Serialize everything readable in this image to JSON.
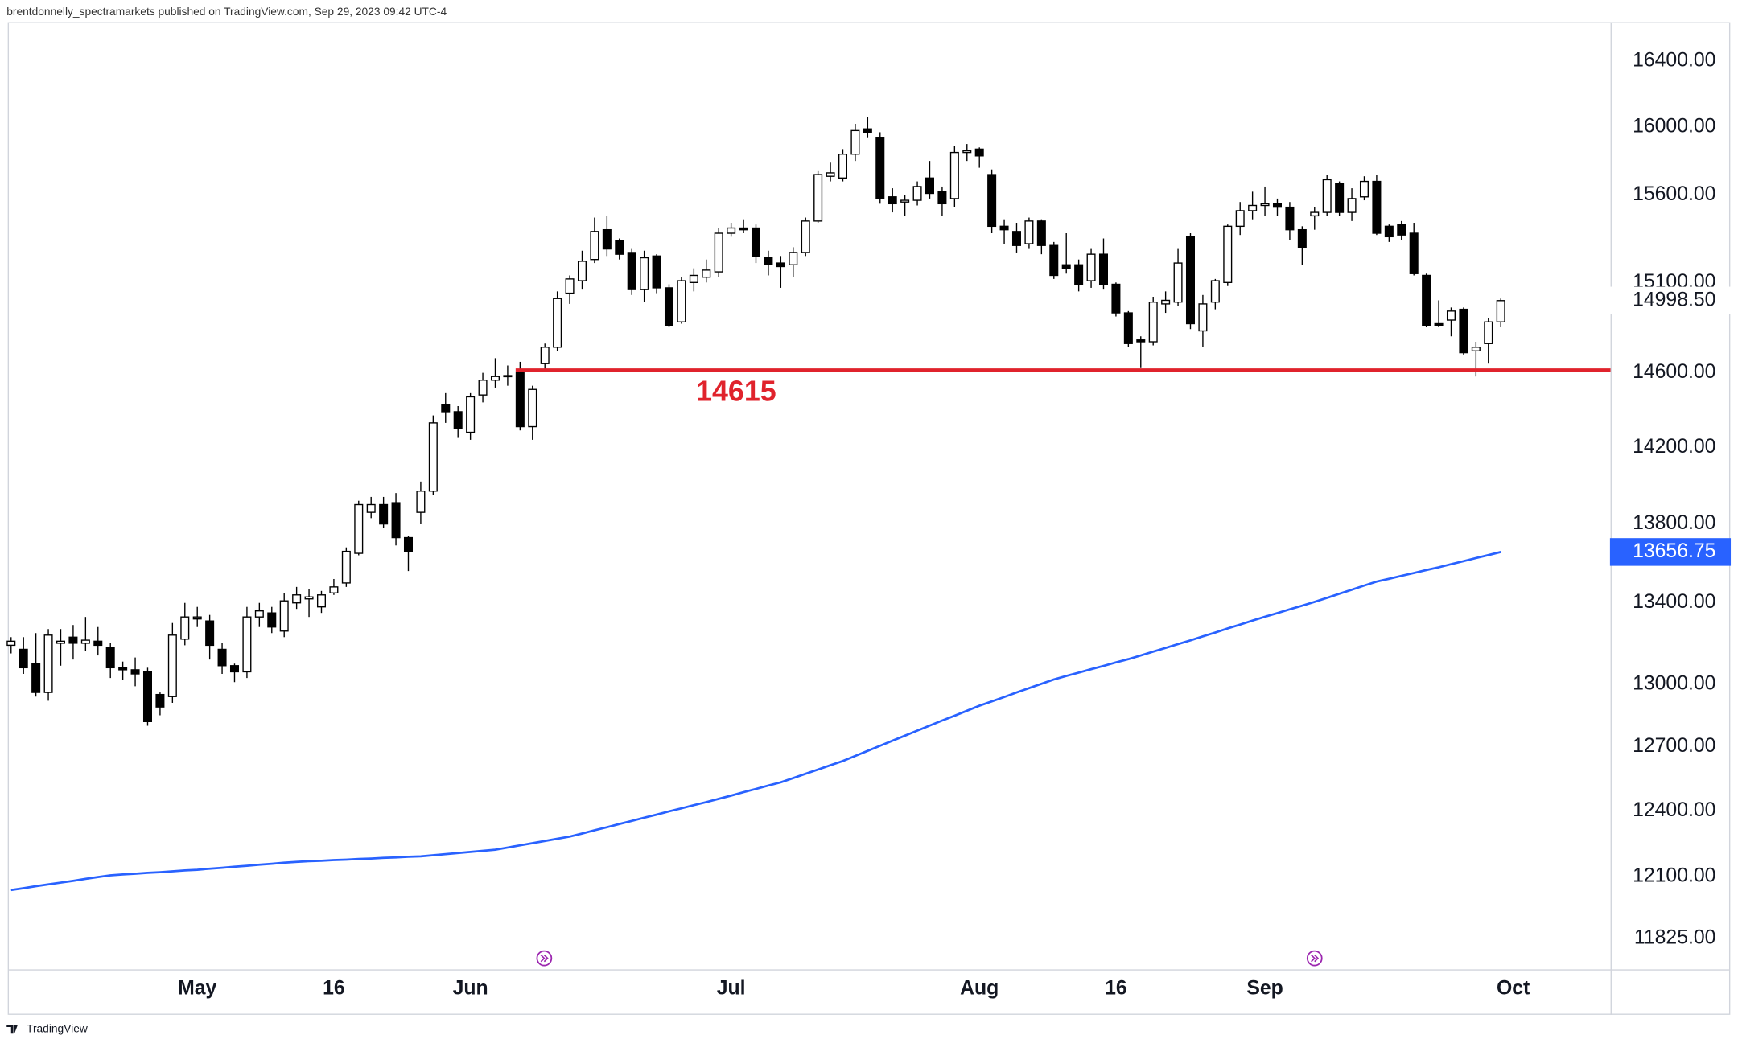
{
  "header": "brentdonnelly_spectramarkets published on TradingView.com, Sep 29, 2023 09:42 UTC-4",
  "brand": "TradingView",
  "chart_data": {
    "type": "candlestick",
    "log": true,
    "ylim": [
      11689,
      16639
    ],
    "yticks": [
      {
        "value": 11825,
        "label": "11825.00"
      },
      {
        "value": 12100,
        "label": "12100.00"
      },
      {
        "value": 12400,
        "label": "12400.00"
      },
      {
        "value": 12700,
        "label": "12700.00"
      },
      {
        "value": 13000,
        "label": "13000.00"
      },
      {
        "value": 13400,
        "label": "13400.00"
      },
      {
        "value": 13800,
        "label": "13800.00"
      },
      {
        "value": 14200,
        "label": "14200.00"
      },
      {
        "value": 14600,
        "label": "14600.00"
      },
      {
        "value": 15100,
        "label": "15100.00"
      },
      {
        "value": 15600,
        "label": "15600.00"
      },
      {
        "value": 16000,
        "label": "16000.00"
      },
      {
        "value": 16400,
        "label": "16400.00"
      }
    ],
    "categories": [
      null,
      null,
      null,
      null,
      null,
      null,
      null,
      null,
      null,
      null,
      null,
      null,
      null,
      null,
      null,
      "May",
      null,
      null,
      null,
      null,
      null,
      null,
      null,
      null,
      null,
      null,
      "16",
      null,
      null,
      null,
      null,
      null,
      null,
      null,
      null,
      null,
      null,
      "Jun",
      null,
      null,
      null,
      null,
      null,
      null,
      null,
      null,
      null,
      null,
      null,
      null,
      null,
      null,
      null,
      null,
      null,
      null,
      null,
      null,
      "Jul",
      null,
      null,
      null,
      null,
      null,
      null,
      null,
      null,
      null,
      null,
      null,
      null,
      null,
      null,
      null,
      null,
      null,
      null,
      null,
      "Aug",
      null,
      null,
      null,
      null,
      null,
      null,
      null,
      null,
      null,
      null,
      "16",
      null,
      null,
      null,
      null,
      null,
      null,
      null,
      null,
      null,
      null,
      null,
      "Sep",
      null,
      null,
      null,
      null,
      null,
      null,
      null,
      null,
      null,
      null,
      null,
      null,
      null,
      null,
      null,
      null,
      null,
      null,
      null,
      "Oct"
    ],
    "up_color": "#ffffff",
    "down_color": "#000000",
    "open": [
      13190,
      13170,
      13100,
      12960,
      13200,
      13230,
      13200,
      13210,
      13180,
      13080,
      13070,
      13060,
      12950,
      12940,
      13220,
      13320,
      13310,
      13170,
      13090,
      13060,
      13330,
      13350,
      13260,
      13400,
      13420,
      13380,
      13450,
      13500,
      13650,
      13860,
      13900,
      13910,
      13730,
      13860,
      13970,
      14430,
      14390,
      14280,
      14480,
      14560,
      14580,
      14600,
      14310,
      14650,
      14740,
      15040,
      15110,
      15230,
      15400,
      15340,
      15270,
      15060,
      15250,
      15070,
      14880,
      15100,
      15130,
      15160,
      15380,
      15410,
      15410,
      15240,
      15210,
      15200,
      15270,
      15450,
      15710,
      15700,
      15840,
      15990,
      15940,
      15590,
      15560,
      15570,
      15700,
      15620,
      15580,
      15850,
      15870,
      15720,
      15420,
      15390,
      15320,
      15450,
      15310,
      15200,
      15200,
      15110,
      15260,
      15090,
      14930,
      14780,
      14770,
      14980,
      14990,
      15360,
      14830,
      14990,
      15100,
      15420,
      15510,
      15540,
      15550,
      15530,
      15400,
      15480,
      15500,
      15670,
      15500,
      15590,
      15680,
      15420,
      15430,
      15380,
      15140,
      14870,
      14890,
      14950,
      14720,
      14760,
      14880,
      null
    ],
    "high": [
      13230,
      13230,
      13250,
      13270,
      13270,
      13290,
      13330,
      13280,
      13200,
      13110,
      13130,
      13080,
      12960,
      13300,
      13400,
      13380,
      13340,
      13200,
      13100,
      13380,
      13400,
      13380,
      13450,
      13480,
      13470,
      13460,
      13520,
      13680,
      13920,
      13940,
      13940,
      13960,
      13740,
      14020,
      14370,
      14490,
      14420,
      14490,
      14600,
      14680,
      14640,
      14660,
      14530,
      14760,
      15050,
      15140,
      15280,
      15470,
      15480,
      15350,
      15290,
      15280,
      15260,
      15090,
      15130,
      15180,
      15230,
      15410,
      15440,
      15460,
      15430,
      15280,
      15250,
      15300,
      15470,
      15740,
      15790,
      15870,
      16020,
      16060,
      15970,
      15640,
      15600,
      15680,
      15800,
      15650,
      15890,
      15900,
      15880,
      15750,
      15460,
      15440,
      15470,
      15460,
      15330,
      15380,
      15230,
      15290,
      15350,
      15100,
      14940,
      14800,
      15020,
      15050,
      15290,
      15380,
      15030,
      15120,
      15430,
      15560,
      15620,
      15650,
      15580,
      15560,
      15420,
      15530,
      15720,
      15680,
      15640,
      15710,
      15720,
      15430,
      15450,
      15440,
      15150,
      15000,
      14960,
      14960,
      14770,
      14900,
      15010,
      null
    ],
    "low": [
      13150,
      13050,
      12940,
      12920,
      13090,
      13120,
      13160,
      13140,
      13030,
      13020,
      12990,
      12800,
      12850,
      12910,
      13190,
      13280,
      13120,
      13050,
      13010,
      13030,
      13280,
      13250,
      13230,
      13370,
      13330,
      13350,
      13440,
      13480,
      13640,
      13830,
      13780,
      13690,
      13560,
      13800,
      13950,
      14330,
      14250,
      14240,
      14440,
      14520,
      14530,
      14290,
      14240,
      14620,
      14720,
      14980,
      15060,
      15210,
      15250,
      15230,
      15030,
      14990,
      15040,
      14850,
      14870,
      15050,
      15100,
      15130,
      15360,
      15380,
      15210,
      15140,
      15070,
      15130,
      15250,
      15440,
      15680,
      15680,
      15800,
      15940,
      15550,
      15500,
      15480,
      15540,
      15580,
      15480,
      15530,
      15800,
      15760,
      15380,
      15320,
      15270,
      15290,
      15260,
      15120,
      15150,
      15050,
      15070,
      15060,
      14910,
      14740,
      14630,
      14750,
      14930,
      14970,
      14840,
      14740,
      14950,
      15080,
      15370,
      15460,
      15480,
      15480,
      15340,
      15200,
      15400,
      15480,
      15480,
      15450,
      15570,
      15370,
      15330,
      15340,
      15140,
      14850,
      14850,
      14800,
      14700,
      14580,
      14650,
      14850,
      null
    ],
    "close": [
      13210,
      13080,
      12960,
      13240,
      13210,
      13200,
      13215,
      13190,
      13080,
      13070,
      13050,
      12820,
      12890,
      13240,
      13330,
      13330,
      13190,
      13090,
      13060,
      13330,
      13360,
      13280,
      13410,
      13440,
      13430,
      13440,
      13480,
      13660,
      13900,
      13900,
      13800,
      13730,
      13660,
      13970,
      14330,
      14390,
      14300,
      14470,
      14560,
      14580,
      14585,
      14310,
      14510,
      14740,
      15010,
      15120,
      15220,
      15390,
      15290,
      15260,
      15060,
      15240,
      15070,
      14860,
      15110,
      15140,
      15170,
      15380,
      15410,
      15400,
      15250,
      15200,
      15190,
      15270,
      15450,
      15720,
      15730,
      15840,
      15980,
      15970,
      15580,
      15550,
      15570,
      15650,
      15610,
      15550,
      15850,
      15860,
      15830,
      15420,
      15400,
      15310,
      15450,
      15310,
      15140,
      15180,
      15090,
      15260,
      15090,
      14930,
      14760,
      14770,
      14990,
      15000,
      15210,
      14870,
      14980,
      15110,
      15420,
      15510,
      15540,
      15550,
      15530,
      15400,
      15300,
      15500,
      15690,
      15500,
      15580,
      15680,
      15380,
      15360,
      15370,
      15150,
      14860,
      14860,
      14940,
      14710,
      14740,
      14880,
      14998.5,
      null
    ],
    "ma": {
      "color": "#2962ff",
      "values": [
        12040,
        12048,
        12057,
        12065,
        12073,
        12081,
        12090,
        12098,
        12106,
        12110,
        12113,
        12117,
        12120,
        12124,
        12128,
        12131,
        12136,
        12140,
        12145,
        12149,
        12154,
        12158,
        12163,
        12167,
        12170,
        12172,
        12175,
        12177,
        12180,
        12182,
        12185,
        12187,
        12190,
        12192,
        12197,
        12202,
        12207,
        12212,
        12217,
        12222,
        12232,
        12242,
        12252,
        12262,
        12272,
        12282,
        12296,
        12311,
        12325,
        12340,
        12354,
        12369,
        12383,
        12398,
        12412,
        12427,
        12441,
        12456,
        12471,
        12487,
        12502,
        12518,
        12533,
        12553,
        12573,
        12593,
        12613,
        12633,
        12657,
        12681,
        12705,
        12729,
        12753,
        12777,
        12801,
        12825,
        12848,
        12872,
        12896,
        12917,
        12938,
        12960,
        12981,
        13002,
        13023,
        13040,
        13056,
        13073,
        13089,
        13106,
        13122,
        13140,
        13159,
        13177,
        13196,
        13214,
        13234,
        13253,
        13273,
        13292,
        13312,
        13331,
        13349,
        13368,
        13386,
        13405,
        13425,
        13446,
        13466,
        13487,
        13507,
        13521,
        13536,
        13550,
        13565,
        13579,
        13595,
        13610,
        13626,
        13641,
        13656.75,
        null
      ]
    },
    "support_level": 14615,
    "support_color": "#e0232c",
    "price_labels": [
      {
        "value": 14998.5,
        "label": "14998.50",
        "background": "#ffffff",
        "text_color": "#131722"
      },
      {
        "value": 13656.75,
        "label": "13656.75",
        "background": "#2962ff",
        "text_color": "#ffffff"
      }
    ]
  }
}
